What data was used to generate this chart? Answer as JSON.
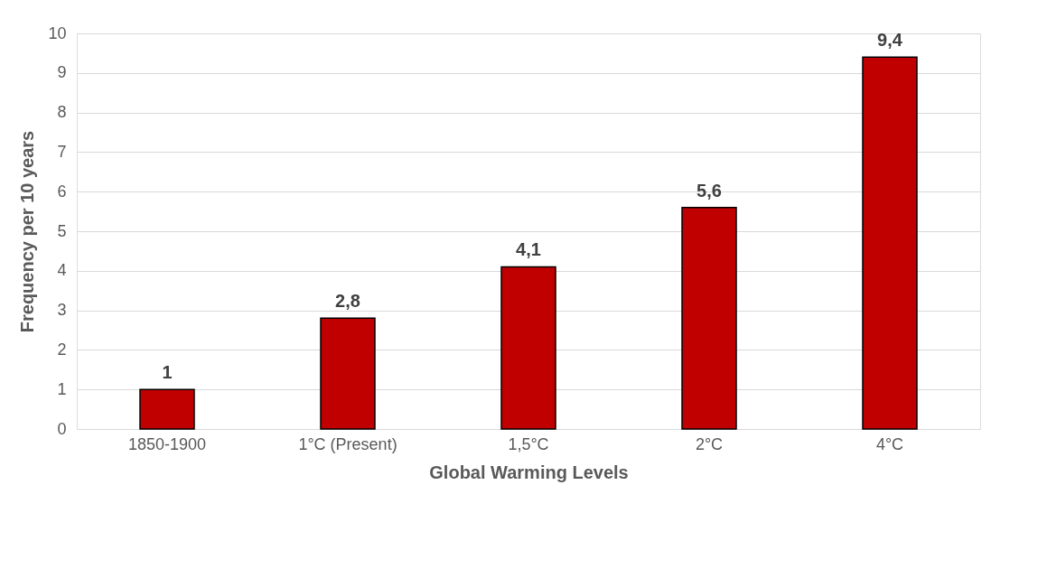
{
  "chart_data": {
    "type": "bar",
    "xlabel": "Global Warming Levels",
    "ylabel": "Frequency per 10 years",
    "categories": [
      "1850-1900",
      "1°C (Present)",
      "1,5°C",
      "2°C",
      "4°C"
    ],
    "values": [
      1,
      2.8,
      4.1,
      5.6,
      9.4
    ],
    "value_labels": [
      "1",
      "2,8",
      "4,1",
      "5,6",
      "9,4"
    ],
    "color": "#c00000",
    "ylim": [
      0,
      10
    ],
    "yticks": [
      0,
      1,
      2,
      3,
      4,
      5,
      6,
      7,
      8,
      9,
      10
    ],
    "grid": "y"
  }
}
